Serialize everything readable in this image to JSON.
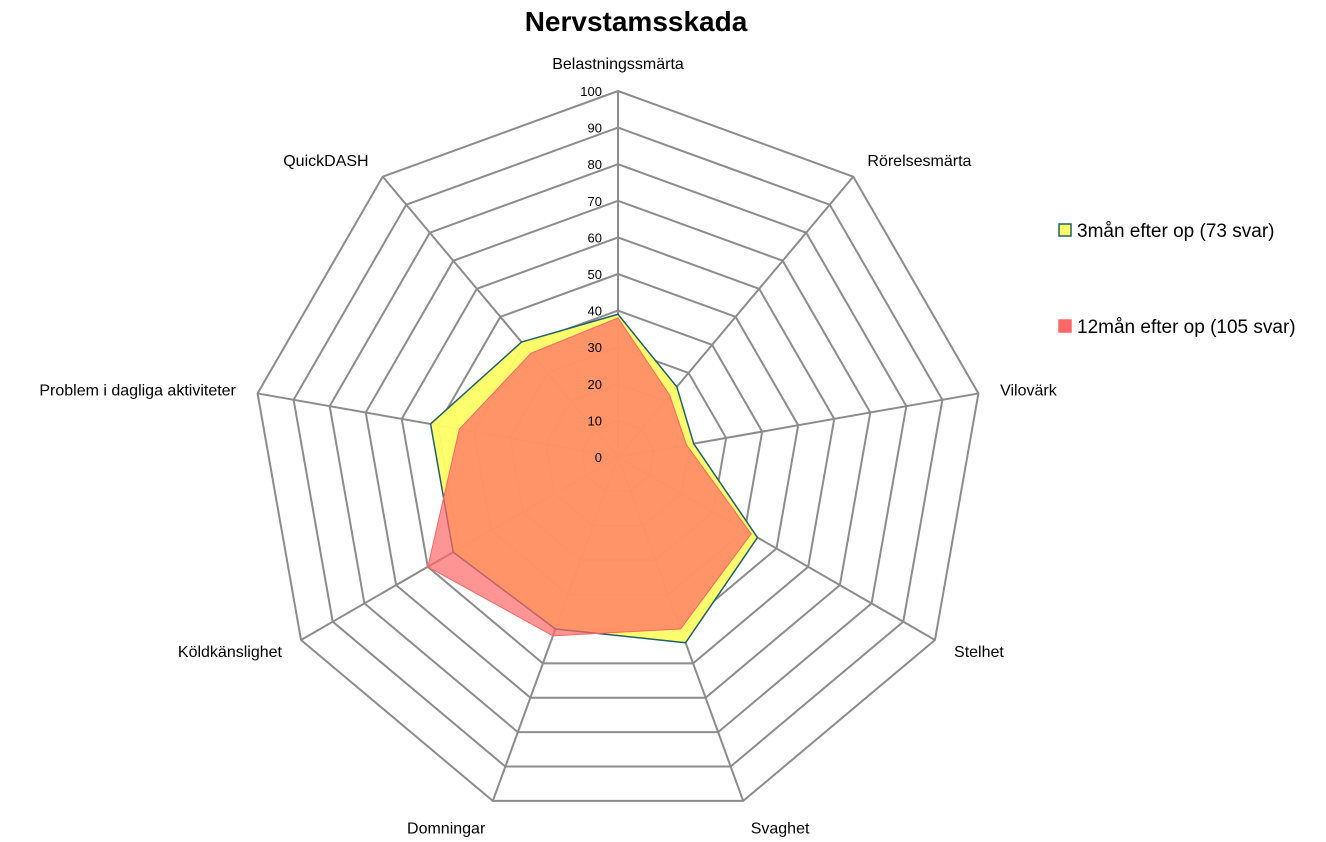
{
  "chart_data": {
    "type": "radar",
    "title": "Nervstamsskada",
    "axes": [
      "Belastningssmärta",
      "Rörelsesmärta",
      "Vilovärk",
      "Stelhet",
      "Svaghet",
      "Domningar",
      "Köldkänslighet",
      "Problem i dagliga aktiviteter",
      "QuickDASH"
    ],
    "rlim": [
      0,
      100
    ],
    "ticks": [
      "0",
      "10",
      "20",
      "30",
      "40",
      "50",
      "60",
      "70",
      "80",
      "90",
      "100"
    ],
    "grid": true,
    "legend_position": "right",
    "series": [
      {
        "name": "3mån efter op (73 svar)",
        "color": "#ffff66",
        "line_color": "#1f5f6f",
        "values": [
          39,
          25,
          21,
          44,
          54,
          50,
          52,
          52,
          41
        ]
      },
      {
        "name": "12mån efter op (105 svar)",
        "color": "#ff6666",
        "line_color": "#ff6666",
        "values": [
          38,
          22,
          19,
          42,
          50,
          52,
          60,
          44,
          37
        ]
      }
    ]
  }
}
